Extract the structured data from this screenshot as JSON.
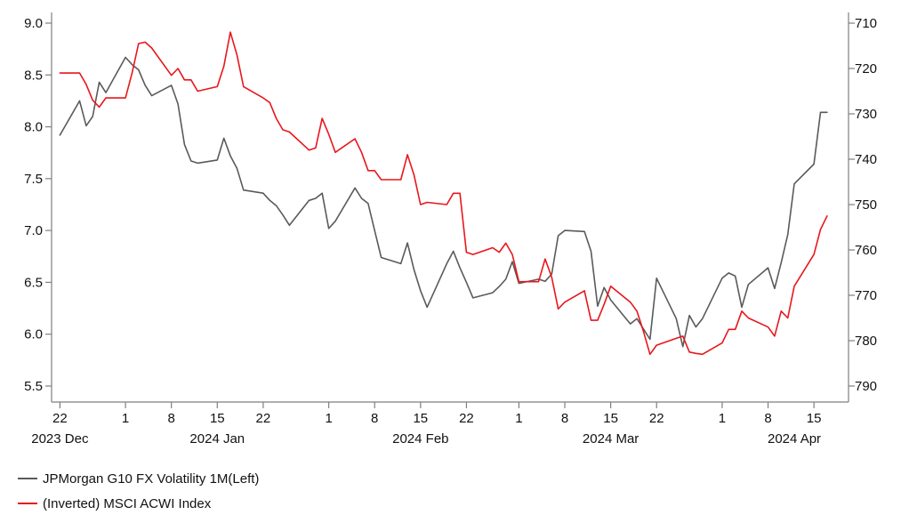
{
  "chart_data": {
    "type": "line",
    "title": "",
    "colors": {
      "series1": "#5a5a5a",
      "series2": "#e8161c",
      "axis": "#7f7f7f"
    },
    "x_ticks": [
      {
        "label": "22",
        "date": "2023-12-22"
      },
      {
        "label": "1",
        "date": "2024-01-01"
      },
      {
        "label": "8",
        "date": "2024-01-08"
      },
      {
        "label": "15",
        "date": "2024-01-15"
      },
      {
        "label": "22",
        "date": "2024-01-22"
      },
      {
        "label": "1",
        "date": "2024-02-01"
      },
      {
        "label": "8",
        "date": "2024-02-08"
      },
      {
        "label": "15",
        "date": "2024-02-15"
      },
      {
        "label": "22",
        "date": "2024-02-22"
      },
      {
        "label": "1",
        "date": "2024-03-01"
      },
      {
        "label": "8",
        "date": "2024-03-08"
      },
      {
        "label": "15",
        "date": "2024-03-15"
      },
      {
        "label": "22",
        "date": "2024-03-22"
      },
      {
        "label": "1",
        "date": "2024-04-01"
      },
      {
        "label": "8",
        "date": "2024-04-08"
      },
      {
        "label": "15",
        "date": "2024-04-15"
      }
    ],
    "month_labels": [
      {
        "label": "2023 Dec",
        "date": "2023-12-22"
      },
      {
        "label": "2024 Jan",
        "date": "2024-01-15"
      },
      {
        "label": "2024 Feb",
        "date": "2024-02-15"
      },
      {
        "label": "2024 Mar",
        "date": "2024-03-15"
      },
      {
        "label": "2024 Apr",
        "date": "2024-04-12"
      }
    ],
    "x_range": [
      "2023-12-21",
      "2024-04-20"
    ],
    "y_left": {
      "ticks": [
        "9.0",
        "8.5",
        "8.0",
        "7.5",
        "7.0",
        "6.5",
        "6.0",
        "5.5"
      ],
      "ylim": [
        5.5,
        9.0
      ]
    },
    "y_right": {
      "ticks": [
        "710",
        "720",
        "730",
        "740",
        "750",
        "760",
        "770",
        "780",
        "790"
      ],
      "ylim": [
        710,
        790
      ],
      "inverted": true
    },
    "series": [
      {
        "name": "JPMorgan G10 FX Volatility 1M(Left)",
        "axis": "left",
        "points": [
          [
            "2023-12-22",
            7.92
          ],
          [
            "2023-12-25",
            8.25
          ],
          [
            "2023-12-26",
            8.01
          ],
          [
            "2023-12-27",
            8.1
          ],
          [
            "2023-12-28",
            8.43
          ],
          [
            "2023-12-29",
            8.33
          ],
          [
            "2024-01-01",
            8.67
          ],
          [
            "2024-01-02",
            8.6
          ],
          [
            "2024-01-03",
            8.55
          ],
          [
            "2024-01-04",
            8.4
          ],
          [
            "2024-01-05",
            8.3
          ],
          [
            "2024-01-08",
            8.4
          ],
          [
            "2024-01-09",
            8.22
          ],
          [
            "2024-01-10",
            7.83
          ],
          [
            "2024-01-11",
            7.67
          ],
          [
            "2024-01-12",
            7.65
          ],
          [
            "2024-01-15",
            7.68
          ],
          [
            "2024-01-16",
            7.89
          ],
          [
            "2024-01-17",
            7.72
          ],
          [
            "2024-01-18",
            7.6
          ],
          [
            "2024-01-19",
            7.39
          ],
          [
            "2024-01-22",
            7.36
          ],
          [
            "2024-01-23",
            7.29
          ],
          [
            "2024-01-24",
            7.24
          ],
          [
            "2024-01-25",
            7.15
          ],
          [
            "2024-01-26",
            7.05
          ],
          [
            "2024-01-29",
            7.29
          ],
          [
            "2024-01-30",
            7.31
          ],
          [
            "2024-01-31",
            7.36
          ],
          [
            "2024-02-01",
            7.02
          ],
          [
            "2024-02-02",
            7.09
          ],
          [
            "2024-02-05",
            7.41
          ],
          [
            "2024-02-06",
            7.31
          ],
          [
            "2024-02-07",
            7.26
          ],
          [
            "2024-02-08",
            7.0
          ],
          [
            "2024-02-09",
            6.74
          ],
          [
            "2024-02-12",
            6.68
          ],
          [
            "2024-02-13",
            6.88
          ],
          [
            "2024-02-14",
            6.62
          ],
          [
            "2024-02-15",
            6.42
          ],
          [
            "2024-02-16",
            6.26
          ],
          [
            "2024-02-19",
            6.68
          ],
          [
            "2024-02-20",
            6.8
          ],
          [
            "2024-02-21",
            6.64
          ],
          [
            "2024-02-22",
            6.5
          ],
          [
            "2024-02-23",
            6.35
          ],
          [
            "2024-02-26",
            6.4
          ],
          [
            "2024-02-27",
            6.46
          ],
          [
            "2024-02-28",
            6.53
          ],
          [
            "2024-02-29",
            6.7
          ],
          [
            "2024-03-01",
            6.49
          ],
          [
            "2024-03-04",
            6.53
          ],
          [
            "2024-03-05",
            6.51
          ],
          [
            "2024-03-06",
            6.58
          ],
          [
            "2024-03-07",
            6.95
          ],
          [
            "2024-03-08",
            7.0
          ],
          [
            "2024-03-11",
            6.99
          ],
          [
            "2024-03-12",
            6.8
          ],
          [
            "2024-03-13",
            6.27
          ],
          [
            "2024-03-14",
            6.45
          ],
          [
            "2024-03-15",
            6.33
          ],
          [
            "2024-03-18",
            6.1
          ],
          [
            "2024-03-19",
            6.15
          ],
          [
            "2024-03-20",
            6.05
          ],
          [
            "2024-03-21",
            5.95
          ],
          [
            "2024-03-22",
            6.54
          ],
          [
            "2024-03-25",
            6.15
          ],
          [
            "2024-03-26",
            5.88
          ],
          [
            "2024-03-27",
            6.18
          ],
          [
            "2024-03-28",
            6.07
          ],
          [
            "2024-03-29",
            6.15
          ],
          [
            "2024-04-01",
            6.54
          ],
          [
            "2024-04-02",
            6.59
          ],
          [
            "2024-04-03",
            6.56
          ],
          [
            "2024-04-04",
            6.26
          ],
          [
            "2024-04-05",
            6.48
          ],
          [
            "2024-04-08",
            6.64
          ],
          [
            "2024-04-09",
            6.44
          ],
          [
            "2024-04-10",
            6.69
          ],
          [
            "2024-04-11",
            6.96
          ],
          [
            "2024-04-12",
            7.45
          ],
          [
            "2024-04-15",
            7.64
          ],
          [
            "2024-04-16",
            8.14
          ],
          [
            "2024-04-17",
            8.14
          ]
        ]
      },
      {
        "name": "(Inverted) MSCI ACWI Index",
        "axis": "right",
        "points": [
          [
            "2023-12-22",
            721.0
          ],
          [
            "2023-12-25",
            721.0
          ],
          [
            "2023-12-26",
            723.5
          ],
          [
            "2023-12-27",
            727.0
          ],
          [
            "2023-12-28",
            728.5
          ],
          [
            "2023-12-29",
            726.5
          ],
          [
            "2024-01-01",
            726.5
          ],
          [
            "2024-01-02",
            721.0
          ],
          [
            "2024-01-03",
            714.5
          ],
          [
            "2024-01-04",
            714.2
          ],
          [
            "2024-01-05",
            715.5
          ],
          [
            "2024-01-08",
            721.5
          ],
          [
            "2024-01-09",
            720.0
          ],
          [
            "2024-01-10",
            722.5
          ],
          [
            "2024-01-11",
            722.5
          ],
          [
            "2024-01-12",
            725.0
          ],
          [
            "2024-01-15",
            724.0
          ],
          [
            "2024-01-16",
            719.5
          ],
          [
            "2024-01-17",
            712.0
          ],
          [
            "2024-01-18",
            717.0
          ],
          [
            "2024-01-19",
            724.0
          ],
          [
            "2024-01-22",
            726.5
          ],
          [
            "2024-01-23",
            727.5
          ],
          [
            "2024-01-24",
            731.0
          ],
          [
            "2024-01-25",
            733.5
          ],
          [
            "2024-01-26",
            734.0
          ],
          [
            "2024-01-29",
            738.0
          ],
          [
            "2024-01-30",
            737.5
          ],
          [
            "2024-01-31",
            731.0
          ],
          [
            "2024-02-01",
            734.5
          ],
          [
            "2024-02-02",
            738.5
          ],
          [
            "2024-02-05",
            735.5
          ],
          [
            "2024-02-06",
            738.5
          ],
          [
            "2024-02-07",
            742.5
          ],
          [
            "2024-02-08",
            742.5
          ],
          [
            "2024-02-09",
            744.5
          ],
          [
            "2024-02-12",
            744.5
          ],
          [
            "2024-02-13",
            739.0
          ],
          [
            "2024-02-14",
            743.5
          ],
          [
            "2024-02-15",
            750.0
          ],
          [
            "2024-02-16",
            749.5
          ],
          [
            "2024-02-19",
            750.0
          ],
          [
            "2024-02-20",
            747.5
          ],
          [
            "2024-02-21",
            747.5
          ],
          [
            "2024-02-22",
            760.5
          ],
          [
            "2024-02-23",
            761.0
          ],
          [
            "2024-02-26",
            759.5
          ],
          [
            "2024-02-27",
            760.5
          ],
          [
            "2024-02-28",
            758.5
          ],
          [
            "2024-02-29",
            761.0
          ],
          [
            "2024-03-01",
            767.0
          ],
          [
            "2024-03-04",
            767.0
          ],
          [
            "2024-03-05",
            762.0
          ],
          [
            "2024-03-06",
            766.0
          ],
          [
            "2024-03-07",
            773.0
          ],
          [
            "2024-03-08",
            771.5
          ],
          [
            "2024-03-11",
            769.0
          ],
          [
            "2024-03-12",
            775.5
          ],
          [
            "2024-03-13",
            775.5
          ],
          [
            "2024-03-14",
            772.0
          ],
          [
            "2024-03-15",
            768.0
          ],
          [
            "2024-03-18",
            771.5
          ],
          [
            "2024-03-19",
            773.5
          ],
          [
            "2024-03-20",
            778.0
          ],
          [
            "2024-03-21",
            783.0
          ],
          [
            "2024-03-22",
            781.0
          ],
          [
            "2024-03-25",
            779.5
          ],
          [
            "2024-03-26",
            779.0
          ],
          [
            "2024-03-27",
            782.5
          ],
          [
            "2024-03-28",
            782.8
          ],
          [
            "2024-03-29",
            783.0
          ],
          [
            "2024-04-01",
            780.5
          ],
          [
            "2024-04-02",
            777.5
          ],
          [
            "2024-04-03",
            777.5
          ],
          [
            "2024-04-04",
            773.5
          ],
          [
            "2024-04-05",
            775.0
          ],
          [
            "2024-04-08",
            777.0
          ],
          [
            "2024-04-09",
            779.0
          ],
          [
            "2024-04-10",
            773.5
          ],
          [
            "2024-04-11",
            775.0
          ],
          [
            "2024-04-12",
            768.0
          ],
          [
            "2024-04-15",
            761.0
          ],
          [
            "2024-04-16",
            755.5
          ],
          [
            "2024-04-17",
            752.5
          ]
        ]
      }
    ]
  }
}
